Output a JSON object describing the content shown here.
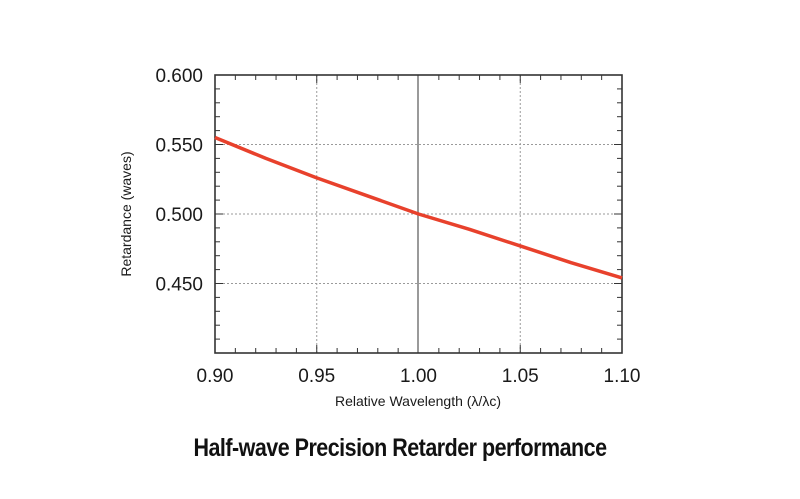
{
  "chart_data": {
    "type": "line",
    "title": "",
    "xlabel": "Relative Wavelength (λ/λc)",
    "ylabel": "Retardance (waves)",
    "xlim": [
      0.9,
      1.1
    ],
    "ylim": [
      0.4,
      0.6
    ],
    "x_ticks": [
      "0.90",
      "0.95",
      "1.00",
      "1.05",
      "1.10"
    ],
    "y_ticks": [
      "0.600",
      "0.550",
      "0.500",
      "0.450"
    ],
    "grid": true,
    "series": [
      {
        "color": "#e8412c",
        "x": [
          0.9,
          0.925,
          0.95,
          0.975,
          1.0,
          1.025,
          1.05,
          1.075,
          1.1
        ],
        "y": [
          0.555,
          0.54,
          0.526,
          0.513,
          0.5,
          0.489,
          0.477,
          0.465,
          0.454
        ]
      }
    ]
  },
  "caption": "Half-wave Precision Retarder performance"
}
